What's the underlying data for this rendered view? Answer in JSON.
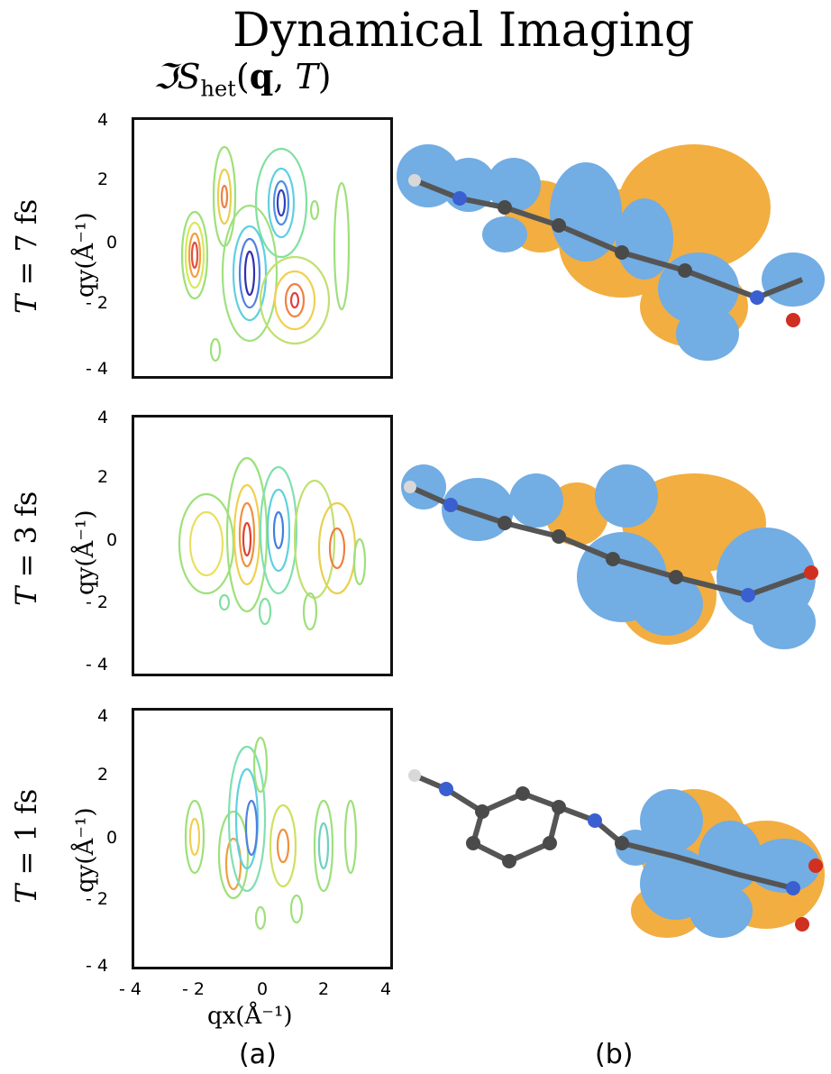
{
  "figure": {
    "title": "Dynamical Imaging",
    "subtitle_symbol": "ℑ",
    "subtitle_S": "S",
    "subtitle_sub": "het",
    "subtitle_args_q": "q",
    "subtitle_args_T": "T",
    "rows": [
      {
        "T_label": "T",
        "eq": " = 7 fs"
      },
      {
        "T_label": "T",
        "eq": " = 3 fs"
      },
      {
        "T_label": "T",
        "eq": " = 1 fs"
      }
    ],
    "y_axis_label": "qy(Å⁻¹)",
    "x_axis_label": "qx(Å⁻¹)",
    "y_ticks": [
      "4",
      "2",
      "0",
      "- 2",
      "- 4"
    ],
    "x_ticks": [
      "- 4",
      "- 2",
      "0",
      "2",
      "4"
    ],
    "caption_a": "(a)",
    "caption_b": "(b)"
  },
  "colors": {
    "positive_lobe": "#f0a020",
    "negative_lobe": "#5a9fe0",
    "atom_carbon": "#4a4a4a",
    "atom_hydrogen": "#d8d8d8",
    "atom_nitrogen": "#3a5fd0",
    "atom_oxygen": "#d03020"
  }
}
